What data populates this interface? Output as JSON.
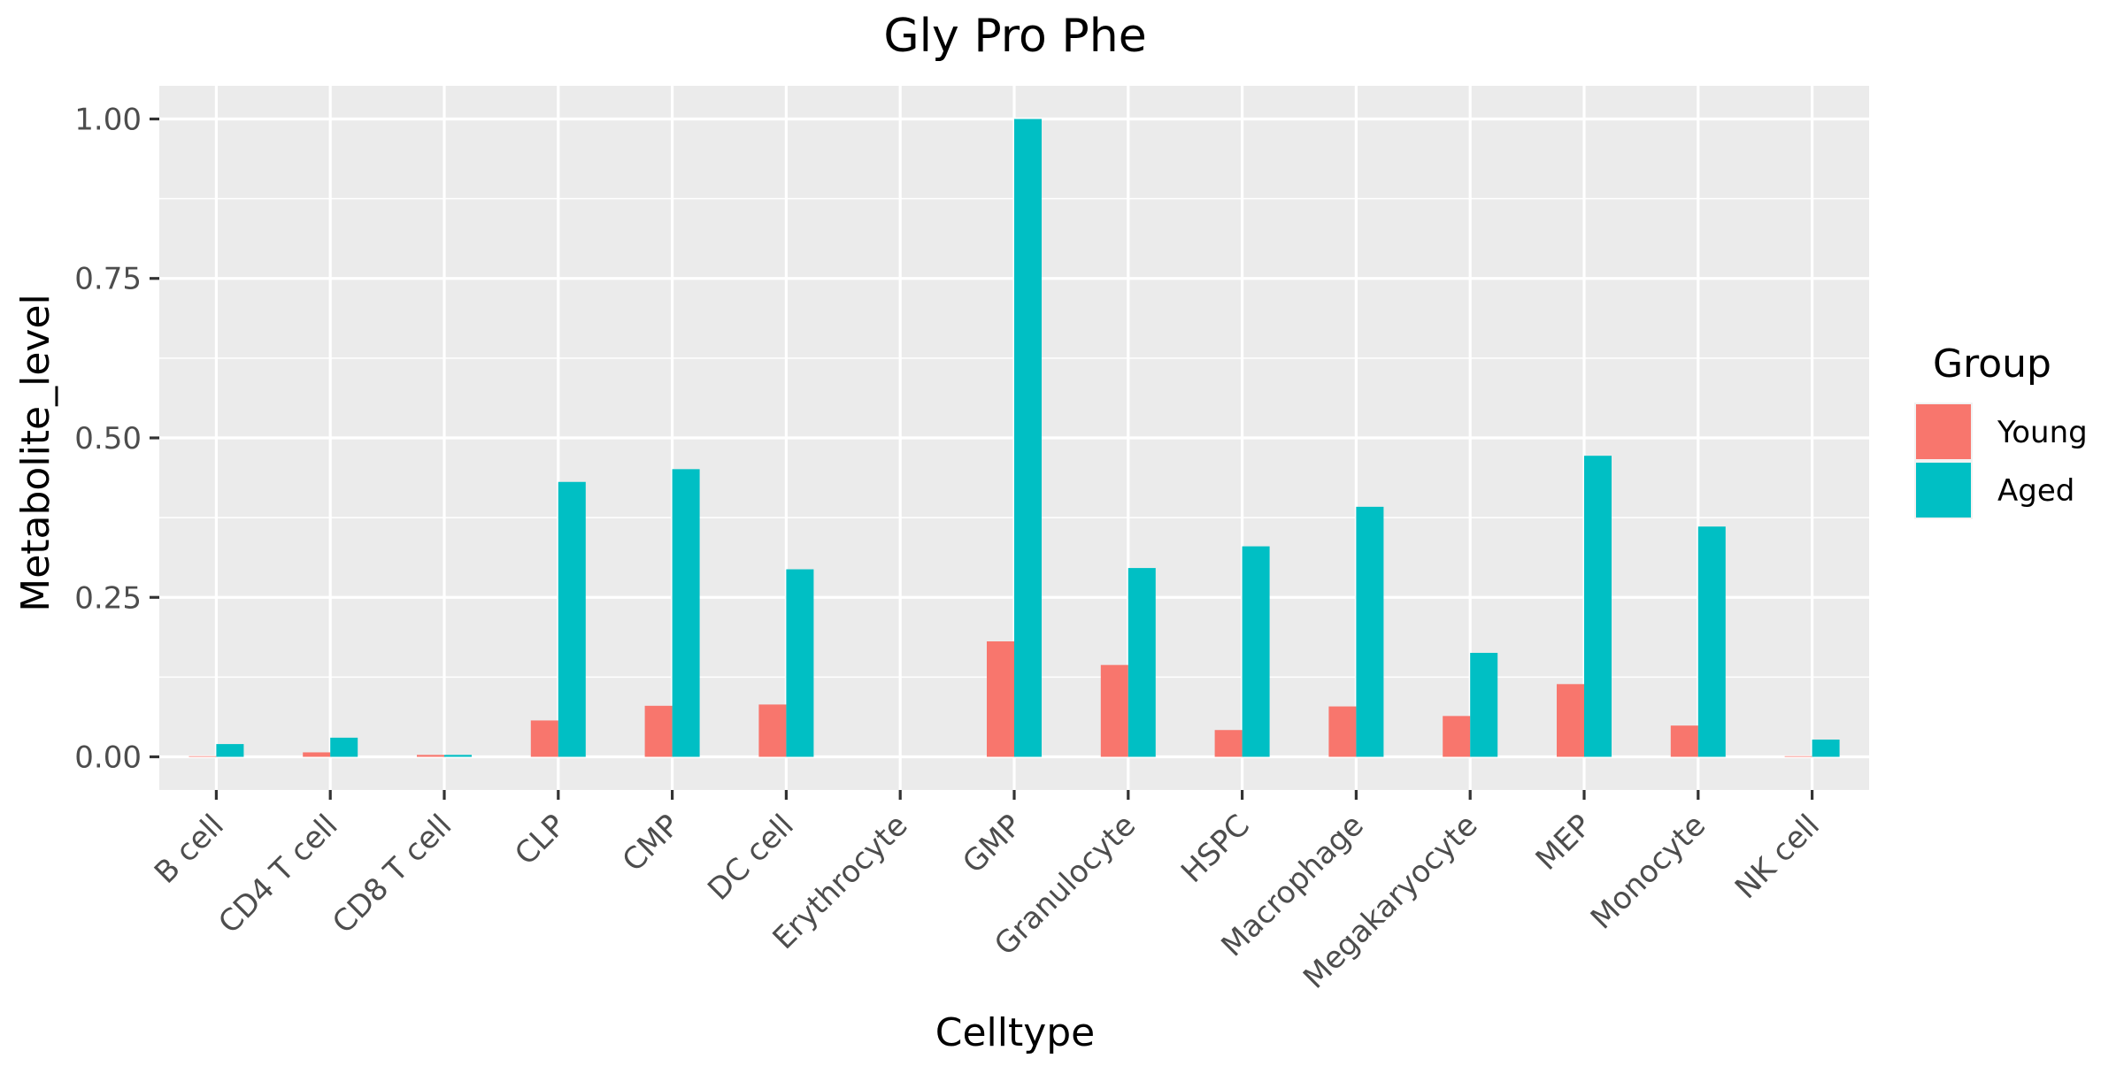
{
  "chart_data": {
    "type": "bar",
    "title": "Gly Pro Phe",
    "xlabel": "Celltype",
    "ylabel": "Metabolite_level",
    "categories": [
      "B cell",
      "CD4 T cell",
      "CD8 T cell",
      "CLP",
      "CMP",
      "DC cell",
      "Erythrocyte",
      "GMP",
      "Granulocyte",
      "HSPC",
      "Macrophage",
      "Megakaryocyte",
      "MEP",
      "Monocyte",
      "NK cell"
    ],
    "series": [
      {
        "name": "Young",
        "color": "#F8766D",
        "values": [
          0.001,
          0.007,
          0.003,
          0.057,
          0.08,
          0.082,
          0.0,
          0.181,
          0.144,
          0.042,
          0.079,
          0.064,
          0.114,
          0.049,
          0.001
        ]
      },
      {
        "name": "Aged",
        "color": "#00BFC4",
        "values": [
          0.02,
          0.03,
          0.003,
          0.431,
          0.451,
          0.294,
          0.0,
          1.0,
          0.296,
          0.33,
          0.392,
          0.163,
          0.472,
          0.361,
          0.027
        ]
      }
    ],
    "ylim": [
      -0.052,
      1.052
    ],
    "yticks": [
      0,
      0.25,
      0.5,
      0.75,
      1.0
    ],
    "ytick_labels": [
      "0.00",
      "0.25",
      "0.50",
      "0.75",
      "1.00"
    ],
    "grid": true,
    "legend": {
      "title": "Group",
      "position": "right"
    },
    "panel_background": "#EBEBEB",
    "grid_color": "#FFFFFF"
  }
}
